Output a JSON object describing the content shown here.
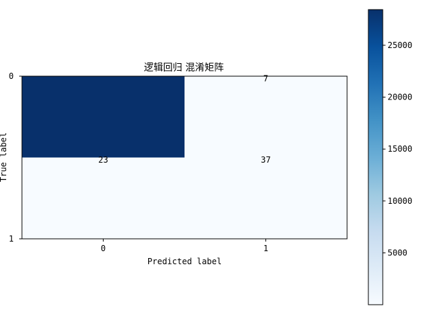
{
  "chart_data": {
    "type": "heatmap",
    "title": "逻辑回归 混淆矩阵",
    "xlabel": "Predicted label",
    "ylabel": "True label",
    "x_categories": [
      "0",
      "1"
    ],
    "y_categories": [
      "0",
      "1"
    ],
    "values": [
      [
        28434,
        7
      ],
      [
        23,
        37
      ]
    ],
    "cell_labels": [
      [
        "",
        "7"
      ],
      [
        "23",
        "37"
      ]
    ],
    "colormap": "Blues",
    "color_low": "#f7fbff",
    "color_high": "#08306b",
    "colorbar": {
      "range": [
        7,
        28434
      ],
      "ticks": [
        5000,
        10000,
        15000,
        20000,
        25000
      ],
      "tick_labels": [
        "5000",
        "10000",
        "15000",
        "20000",
        "25000"
      ]
    }
  }
}
